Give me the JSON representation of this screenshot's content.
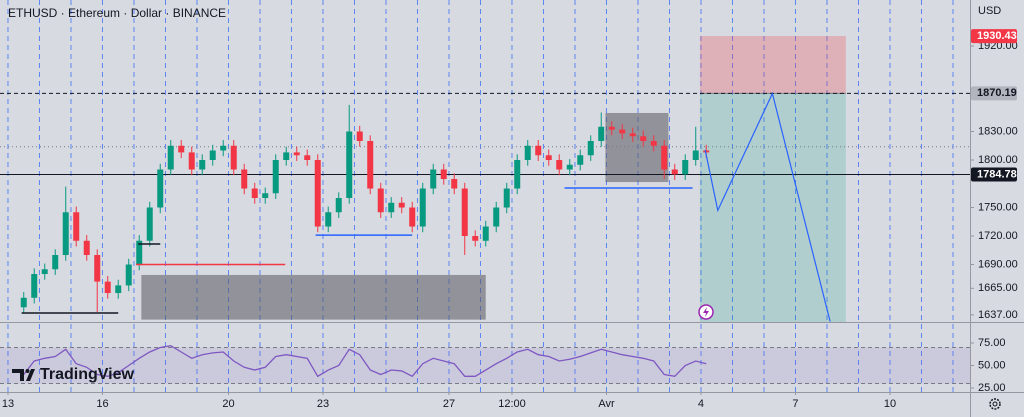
{
  "chart_data": {
    "type": "candlestick",
    "title": "ETHUSD · Ethereum · Dollar · BINANCE",
    "currency": "USD",
    "logo": "TradingView",
    "up_color": "#089981",
    "down_color": "#f23645",
    "x": [
      0,
      1,
      2,
      3,
      4,
      5,
      6,
      7,
      8,
      9,
      10,
      11,
      12,
      13,
      14,
      15,
      16,
      17,
      18,
      19,
      20,
      21,
      22,
      23,
      24,
      25,
      26,
      27,
      28,
      29,
      30,
      31,
      32,
      33,
      34,
      35,
      36,
      37,
      38,
      39,
      40,
      41,
      42,
      43,
      44,
      45,
      46,
      47,
      48,
      49,
      50,
      51,
      52,
      53,
      54,
      55,
      56,
      57,
      58,
      59,
      60,
      61,
      62,
      63,
      64,
      65
    ],
    "open": [
      1645,
      1655,
      1680,
      1685,
      1700,
      1745,
      1715,
      1700,
      1672,
      1660,
      1668,
      1690,
      1715,
      1750,
      1790,
      1815,
      1808,
      1790,
      1800,
      1810,
      1815,
      1790,
      1770,
      1760,
      1765,
      1800,
      1808,
      1805,
      1800,
      1730,
      1745,
      1760,
      1830,
      1820,
      1770,
      1745,
      1755,
      1750,
      1730,
      1770,
      1790,
      1780,
      1770,
      1720,
      1715,
      1730,
      1750,
      1770,
      1800,
      1815,
      1805,
      1800,
      1790,
      1795,
      1805,
      1820,
      1835,
      1832,
      1828,
      1825,
      1820,
      1815,
      1790,
      1785,
      1800,
      1810
    ],
    "high": [
      1661,
      1686,
      1691,
      1706,
      1772,
      1751,
      1721,
      1706,
      1678,
      1674,
      1696,
      1721,
      1756,
      1796,
      1821,
      1821,
      1814,
      1806,
      1816,
      1821,
      1821,
      1796,
      1776,
      1771,
      1806,
      1814,
      1814,
      1811,
      1806,
      1751,
      1766,
      1858,
      1836,
      1826,
      1776,
      1761,
      1761,
      1756,
      1776,
      1796,
      1796,
      1786,
      1776,
      1726,
      1736,
      1756,
      1776,
      1806,
      1821,
      1821,
      1811,
      1806,
      1801,
      1811,
      1826,
      1850,
      1841,
      1838,
      1834,
      1831,
      1826,
      1821,
      1796,
      1806,
      1835,
      1816
    ],
    "low": [
      1639,
      1649,
      1674,
      1679,
      1694,
      1709,
      1694,
      1640,
      1654,
      1654,
      1662,
      1684,
      1709,
      1744,
      1784,
      1802,
      1784,
      1784,
      1794,
      1804,
      1784,
      1764,
      1754,
      1754,
      1759,
      1794,
      1799,
      1794,
      1724,
      1724,
      1739,
      1754,
      1814,
      1764,
      1739,
      1739,
      1744,
      1724,
      1724,
      1764,
      1774,
      1764,
      1700,
      1709,
      1709,
      1724,
      1744,
      1764,
      1794,
      1799,
      1794,
      1784,
      1784,
      1789,
      1799,
      1814,
      1826,
      1822,
      1819,
      1814,
      1809,
      1780,
      1779,
      1779,
      1794,
      1802
    ],
    "close": [
      1655,
      1680,
      1685,
      1700,
      1745,
      1715,
      1700,
      1672,
      1660,
      1668,
      1690,
      1715,
      1750,
      1790,
      1815,
      1808,
      1790,
      1800,
      1810,
      1815,
      1790,
      1770,
      1760,
      1765,
      1800,
      1808,
      1805,
      1800,
      1730,
      1745,
      1760,
      1830,
      1820,
      1770,
      1745,
      1755,
      1750,
      1730,
      1770,
      1790,
      1780,
      1770,
      1720,
      1715,
      1730,
      1750,
      1770,
      1800,
      1815,
      1805,
      1800,
      1790,
      1795,
      1805,
      1820,
      1835,
      1832,
      1828,
      1825,
      1820,
      1815,
      1790,
      1785,
      1800,
      1810,
      1808
    ],
    "xlim": [
      -2.26,
      90.12
    ],
    "xticks": [
      {
        "value": -1.5,
        "label": "13"
      },
      {
        "value": 7.5,
        "label": "16"
      },
      {
        "value": 19.5,
        "label": "20"
      },
      {
        "value": 28.5,
        "label": "23"
      },
      {
        "value": 40.5,
        "label": "27"
      },
      {
        "value": 46.5,
        "label": "12:00"
      },
      {
        "value": 55.5,
        "label": "Avr"
      },
      {
        "value": 64.5,
        "label": "4"
      },
      {
        "value": 73.5,
        "label": "7"
      },
      {
        "value": 82.5,
        "label": "10"
      }
    ],
    "x_gridlines": [
      -1.5,
      1.5,
      4.5,
      7.5,
      10.5,
      13.5,
      16.5,
      19.5,
      22.5,
      25.5,
      28.5,
      31.5,
      34.5,
      37.5,
      40.5,
      43.5,
      46.5,
      49.5,
      52.5,
      55.5,
      58.5,
      61.5,
      64.5,
      67.5,
      70.5,
      73.5,
      76.5,
      79.5,
      82.5,
      85.5,
      88.5
    ],
    "ylim": [
      1629.5,
      1968.4
    ],
    "yticks": [
      {
        "value": 1920,
        "label": "1920.00"
      },
      {
        "value": 1830,
        "label": "1830.00"
      },
      {
        "value": 1800,
        "label": "1800.00"
      },
      {
        "value": 1750,
        "label": "1750.00"
      },
      {
        "value": 1720,
        "label": "1720.00"
      },
      {
        "value": 1690,
        "label": "1690.00"
      },
      {
        "value": 1665,
        "label": "1665.00"
      },
      {
        "value": 1637,
        "label": "1637.00"
      }
    ],
    "drawings": {
      "hlines": [
        {
          "value": 1870.19,
          "style": "dashed",
          "color": "#131722"
        },
        {
          "value": 1784.78,
          "style": "solid",
          "color": "#131722"
        },
        {
          "value": 1814,
          "style": "dotted",
          "color": "#787b86"
        }
      ],
      "position": {
        "x": [
          64.4,
          78.3
        ],
        "entry": 1870.19,
        "target": 1930.43,
        "stop": 1629.5,
        "target_color": "rgba(242,54,69,0.25)",
        "stop_color": "rgba(8,153,129,0.18)"
      },
      "rects": [
        {
          "x": [
            11.2,
            44
          ],
          "top": 1679,
          "bottom": 1632,
          "color": "rgba(90,90,96,0.55)"
        },
        {
          "x": [
            55.4,
            61.4
          ],
          "top": 1849.5,
          "bottom": 1776.8,
          "color": "rgba(90,90,96,0.55)"
        }
      ],
      "segments": [
        {
          "x": [
            10.7,
            24.9
          ],
          "value": 1690,
          "color": "#f23645"
        },
        {
          "x": [
            27.8,
            37
          ],
          "value": 1721,
          "color": "#2962ff"
        },
        {
          "x": [
            51.5,
            63.7
          ],
          "value": 1770.5,
          "color": "#2962ff"
        },
        {
          "x": [
            -0.2,
            9
          ],
          "value": 1639,
          "color": "#131722"
        },
        {
          "x": [
            10.9,
            13
          ],
          "value": 1711.6,
          "color": "#131722"
        }
      ],
      "path": {
        "x": [
          64.9,
          66.1,
          71.3,
          76.8
        ],
        "values": [
          1810.5,
          1747,
          1870,
          1630
        ],
        "color": "#2962ff"
      }
    },
    "rsi": {
      "values": [
        40,
        55,
        58,
        60,
        68,
        52,
        48,
        40,
        38,
        42,
        50,
        58,
        65,
        70,
        72,
        65,
        58,
        62,
        64,
        65,
        55,
        48,
        45,
        48,
        60,
        62,
        60,
        58,
        38,
        45,
        50,
        68,
        62,
        45,
        40,
        45,
        44,
        38,
        52,
        58,
        55,
        52,
        38,
        38,
        45,
        52,
        58,
        65,
        68,
        62,
        60,
        55,
        57,
        60,
        64,
        68,
        65,
        62,
        60,
        58,
        55,
        40,
        38,
        50,
        55,
        52
      ],
      "color": "#7e57c2",
      "ylim": [
        20.6,
        98.3
      ],
      "band": [
        30,
        70
      ],
      "yticks": [
        {
          "value": 75,
          "label": "75.00"
        },
        {
          "value": 50,
          "label": "50.00"
        },
        {
          "value": 25,
          "label": "25.00"
        }
      ]
    }
  }
}
